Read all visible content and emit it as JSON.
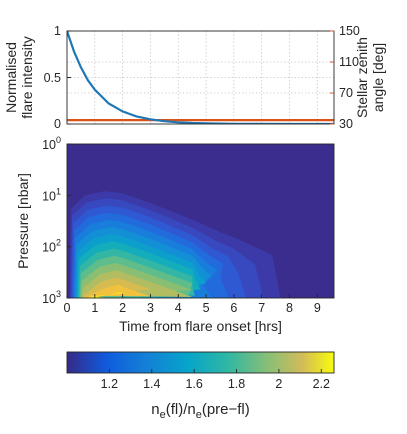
{
  "chart_data": [
    {
      "type": "line",
      "panel": "top",
      "x": [
        0,
        0.25,
        0.5,
        0.75,
        1,
        1.5,
        2,
        2.5,
        3,
        3.5,
        4,
        4.5,
        5,
        5.5,
        6,
        7,
        8,
        9,
        9.6
      ],
      "series": [
        {
          "axis": "left",
          "color": "#1f77b4",
          "values": [
            1,
            0.78,
            0.61,
            0.47,
            0.37,
            0.22,
            0.135,
            0.082,
            0.05,
            0.03,
            0.018,
            0.011,
            0.007,
            0.004,
            0.002,
            0.001,
            0.0,
            0.0,
            0.0
          ]
        },
        {
          "axis": "right",
          "color": "#d95319",
          "values": [
            35,
            35,
            35,
            35,
            35,
            35,
            35,
            35,
            35,
            35,
            35,
            35,
            35,
            35,
            35,
            35,
            35,
            35,
            35
          ]
        }
      ],
      "ylabel": "Normalised\nflare intensity",
      "ylabel_color": "#0072bd",
      "ylim": [
        0,
        1
      ],
      "yticks": [
        "0",
        "0.5",
        "1"
      ],
      "y2label": "Stellar zenith\nangle [deg]",
      "y2label_color": "#d95319",
      "y2lim": [
        30,
        150
      ],
      "y2ticks": [
        "30",
        "70",
        "110",
        "150"
      ],
      "xlim": [
        0,
        9.6
      ],
      "grid": true
    },
    {
      "type": "heatmap",
      "panel": "bottom",
      "xlabel": "Time from flare onset [hrs]",
      "xlim": [
        0,
        9.6
      ],
      "xticks": [
        "0",
        "1",
        "2",
        "3",
        "4",
        "5",
        "6",
        "7",
        "8",
        "9"
      ],
      "ylabel": "Pressure [nbar]",
      "ylim": [
        1000,
        1
      ],
      "yscale": "log",
      "yticks_base": "10",
      "yticks_exp": [
        "0",
        "1",
        "2",
        "3"
      ],
      "colorbar_ticks": [
        "1.2",
        "1.4",
        "1.6",
        "1.8",
        "2",
        "2.2"
      ],
      "colorbar_range": [
        1.0,
        2.26
      ],
      "colorbar_label_main": "n",
      "colorbar_label_sub1": "e",
      "colorbar_label_mid": "(fl)/n",
      "colorbar_label_sub2": "e",
      "colorbar_label_end": "(pre−fl)",
      "colormap": "parula",
      "peak": {
        "time": 1.5,
        "pressure": 900,
        "value": 2.22
      }
    }
  ]
}
